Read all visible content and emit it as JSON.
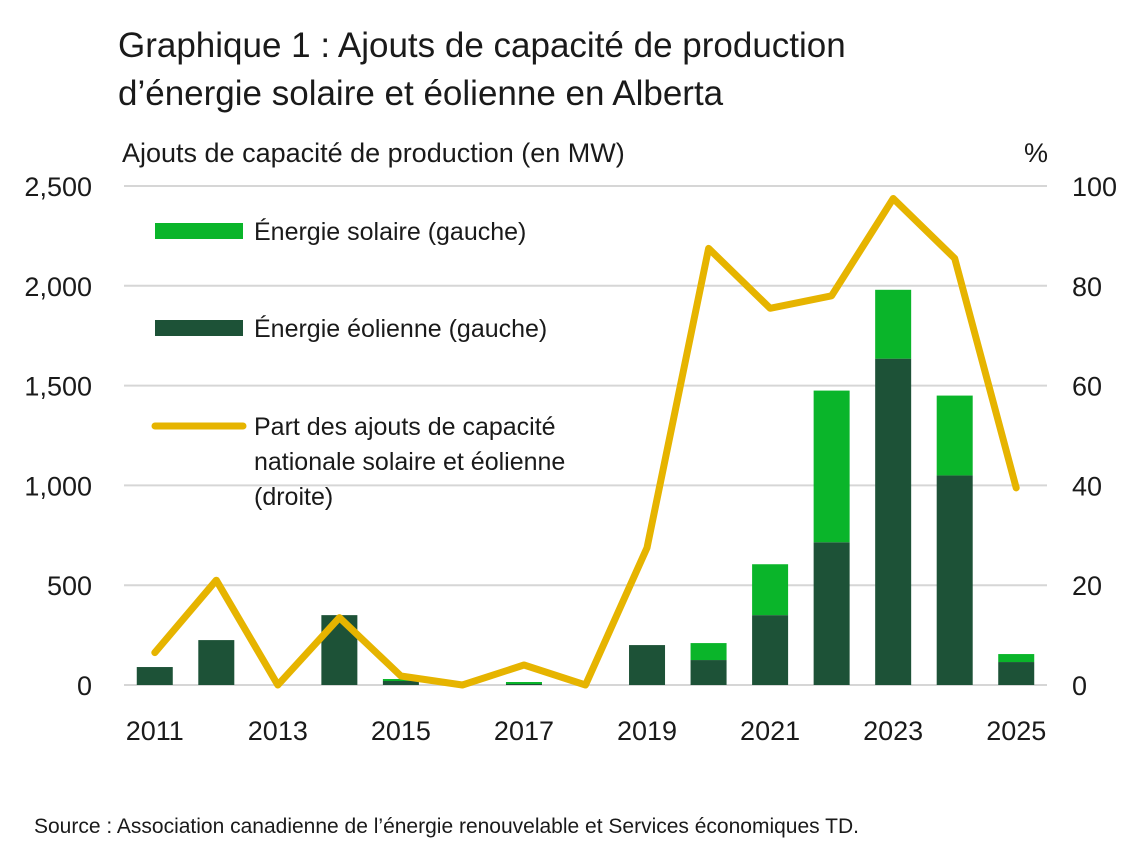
{
  "title": {
    "line1": "Graphique 1 : Ajouts de capacité de production",
    "line2": "d’énergie solaire et éolienne en Alberta"
  },
  "source": "Source : Association canadienne de l’énergie renouvelable et Services économiques TD.",
  "colors": {
    "solar": "#0ab52a",
    "wind": "#1d5237",
    "share": "#e6b400",
    "grid": "#d6d6d6"
  },
  "chart_data": {
    "type": "bar",
    "stacked": true,
    "categories": [
      "2011",
      "2012",
      "2013",
      "2014",
      "2015",
      "2016",
      "2017",
      "2018",
      "2019",
      "2020",
      "2021",
      "2022",
      "2023",
      "2024",
      "2025"
    ],
    "x_tick_labels": [
      "2011",
      "2013",
      "2015",
      "2017",
      "2019",
      "2021",
      "2023",
      "2025"
    ],
    "ylabel_left": "Ajouts de capacité de production (en MW)",
    "ylabel_right": "%",
    "ylim_left": [
      0,
      2500
    ],
    "ylim_right": [
      0,
      100
    ],
    "yticks_left": [
      "0",
      "500",
      "1,000",
      "1,500",
      "2,000",
      "2,500"
    ],
    "yticks_right": [
      "0",
      "20",
      "40",
      "60",
      "80",
      "100"
    ],
    "grid": true,
    "legend_placement": "top-left",
    "series": [
      {
        "name": "Énergie éolienne (gauche)",
        "type": "bar",
        "axis": "left",
        "values": [
          90,
          225,
          0,
          350,
          20,
          0,
          5,
          0,
          200,
          125,
          350,
          715,
          1635,
          1050,
          115
        ]
      },
      {
        "name": "Énergie solaire (gauche)",
        "type": "bar",
        "axis": "left",
        "values": [
          0,
          0,
          0,
          0,
          10,
          0,
          10,
          0,
          0,
          85,
          255,
          760,
          345,
          400,
          40
        ]
      },
      {
        "name": "Part des ajouts de capacité nationale solaire et éolienne (droite)",
        "type": "line",
        "axis": "right",
        "values": [
          6.5,
          21,
          0,
          13.5,
          1.8,
          0,
          4,
          0,
          27.5,
          87.5,
          75.5,
          78,
          97.5,
          85.5,
          39.5
        ]
      }
    ],
    "legend": [
      {
        "kind": "bar",
        "color_key": "solar",
        "lines": [
          "Énergie solaire (gauche)"
        ]
      },
      {
        "kind": "bar",
        "color_key": "wind",
        "lines": [
          "Énergie éolienne (gauche)"
        ]
      },
      {
        "kind": "line",
        "color_key": "share",
        "lines": [
          "Part des ajouts de capacité",
          "nationale solaire et éolienne",
          "(droite)"
        ]
      }
    ]
  }
}
